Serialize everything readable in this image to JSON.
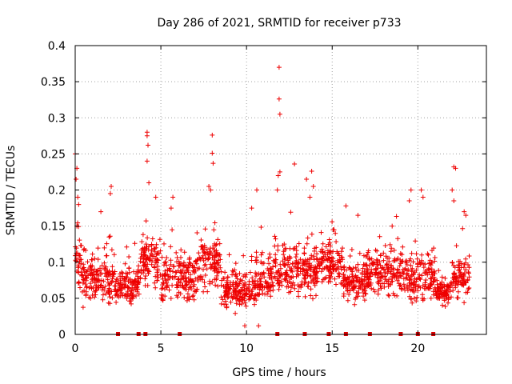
{
  "chart_data": {
    "type": "scatter",
    "title": "Day 286 of 2021, SRMTID for receiver p733",
    "xlabel": "GPS time / hours",
    "ylabel": "SRMTID / TECUs",
    "xlim": [
      0,
      24
    ],
    "ylim": [
      0,
      0.4
    ],
    "x_ticks": [
      0,
      5,
      10,
      15,
      20
    ],
    "x_tick_labels": [
      "0",
      "5",
      "10",
      "15",
      "20"
    ],
    "y_ticks": [
      0,
      0.05,
      0.1,
      0.15,
      0.2,
      0.25,
      0.3,
      0.35,
      0.4
    ],
    "y_tick_labels": [
      "0",
      "0.05",
      "0.1",
      "0.15",
      "0.2",
      "0.25",
      "0.3",
      "0.35",
      "0.4"
    ],
    "grid": true,
    "marker": "+",
    "color": "#ee0000",
    "data_gap_markers_x": [
      2.5,
      3.7,
      4.1,
      6.1,
      11.8,
      13.4,
      14.8,
      15.8,
      17.2,
      19.0,
      20.0,
      20.9
    ],
    "density_segments": [
      {
        "start": 0.0,
        "end": 0.4,
        "base": 0.1,
        "spread": 0.06
      },
      {
        "start": 0.4,
        "end": 2.3,
        "base": 0.075,
        "spread": 0.045
      },
      {
        "start": 2.3,
        "end": 3.8,
        "base": 0.065,
        "spread": 0.035
      },
      {
        "start": 3.8,
        "end": 5.0,
        "base": 0.1,
        "spread": 0.05
      },
      {
        "start": 5.0,
        "end": 7.2,
        "base": 0.08,
        "spread": 0.045
      },
      {
        "start": 7.2,
        "end": 8.5,
        "base": 0.1,
        "spread": 0.05
      },
      {
        "start": 8.5,
        "end": 10.5,
        "base": 0.06,
        "spread": 0.035
      },
      {
        "start": 10.5,
        "end": 11.6,
        "base": 0.075,
        "spread": 0.045
      },
      {
        "start": 11.6,
        "end": 14.2,
        "base": 0.09,
        "spread": 0.05
      },
      {
        "start": 14.2,
        "end": 15.6,
        "base": 0.1,
        "spread": 0.04
      },
      {
        "start": 15.6,
        "end": 17.0,
        "base": 0.07,
        "spread": 0.035
      },
      {
        "start": 17.0,
        "end": 19.2,
        "base": 0.085,
        "spread": 0.045
      },
      {
        "start": 19.2,
        "end": 21.0,
        "base": 0.08,
        "spread": 0.045
      },
      {
        "start": 21.0,
        "end": 22.0,
        "base": 0.06,
        "spread": 0.025
      },
      {
        "start": 22.0,
        "end": 23.0,
        "base": 0.08,
        "spread": 0.04
      }
    ],
    "notable_points": [
      {
        "x": 0.0,
        "y": 0.25
      },
      {
        "x": 0.05,
        "y": 0.215
      },
      {
        "x": 0.1,
        "y": 0.23
      },
      {
        "x": 0.15,
        "y": 0.19
      },
      {
        "x": 0.2,
        "y": 0.18
      },
      {
        "x": 0.1,
        "y": 0.15
      },
      {
        "x": 2.1,
        "y": 0.205
      },
      {
        "x": 2.05,
        "y": 0.195
      },
      {
        "x": 1.5,
        "y": 0.17
      },
      {
        "x": 4.2,
        "y": 0.28
      },
      {
        "x": 4.2,
        "y": 0.275
      },
      {
        "x": 4.25,
        "y": 0.262
      },
      {
        "x": 4.2,
        "y": 0.24
      },
      {
        "x": 4.3,
        "y": 0.21
      },
      {
        "x": 4.7,
        "y": 0.19
      },
      {
        "x": 5.7,
        "y": 0.19
      },
      {
        "x": 5.6,
        "y": 0.175
      },
      {
        "x": 7.8,
        "y": 0.205
      },
      {
        "x": 7.9,
        "y": 0.2
      },
      {
        "x": 8.0,
        "y": 0.276
      },
      {
        "x": 8.0,
        "y": 0.251
      },
      {
        "x": 8.05,
        "y": 0.237
      },
      {
        "x": 10.6,
        "y": 0.2
      },
      {
        "x": 10.3,
        "y": 0.175
      },
      {
        "x": 11.9,
        "y": 0.37
      },
      {
        "x": 11.9,
        "y": 0.326
      },
      {
        "x": 11.95,
        "y": 0.305
      },
      {
        "x": 11.95,
        "y": 0.225
      },
      {
        "x": 11.85,
        "y": 0.22
      },
      {
        "x": 11.8,
        "y": 0.2
      },
      {
        "x": 12.8,
        "y": 0.236
      },
      {
        "x": 13.5,
        "y": 0.215
      },
      {
        "x": 13.8,
        "y": 0.226
      },
      {
        "x": 13.9,
        "y": 0.205
      },
      {
        "x": 13.7,
        "y": 0.19
      },
      {
        "x": 15.8,
        "y": 0.178
      },
      {
        "x": 16.5,
        "y": 0.165
      },
      {
        "x": 18.5,
        "y": 0.15
      },
      {
        "x": 19.5,
        "y": 0.185
      },
      {
        "x": 19.6,
        "y": 0.2
      },
      {
        "x": 20.2,
        "y": 0.2
      },
      {
        "x": 20.3,
        "y": 0.19
      },
      {
        "x": 22.1,
        "y": 0.232
      },
      {
        "x": 22.2,
        "y": 0.23
      },
      {
        "x": 22.0,
        "y": 0.2
      },
      {
        "x": 22.1,
        "y": 0.185
      },
      {
        "x": 22.7,
        "y": 0.17
      },
      {
        "x": 22.8,
        "y": 0.165
      },
      {
        "x": 9.9,
        "y": 0.012
      },
      {
        "x": 10.7,
        "y": 0.012
      }
    ]
  }
}
